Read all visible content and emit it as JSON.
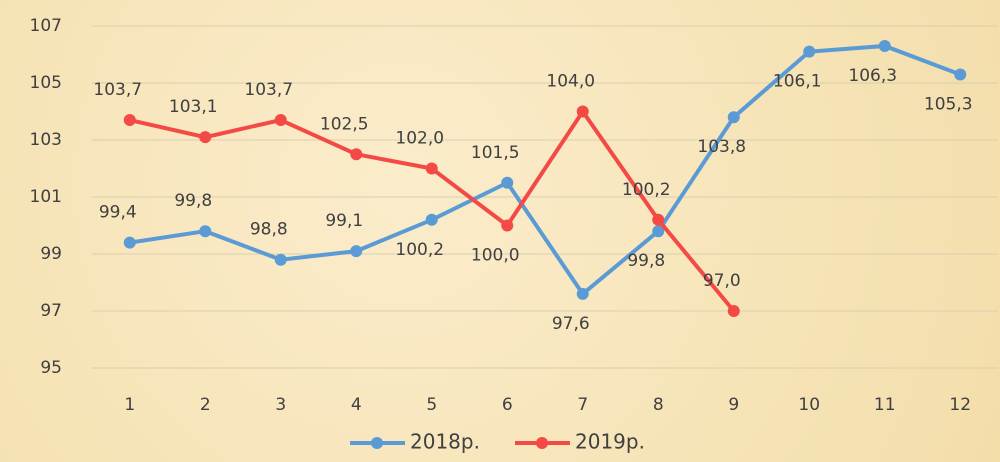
{
  "chart_data": {
    "type": "line",
    "categories": [
      "1",
      "2",
      "3",
      "4",
      "5",
      "6",
      "7",
      "8",
      "9",
      "10",
      "11",
      "12"
    ],
    "series": [
      {
        "name": "2018р.",
        "color": "#5b9bd5",
        "values": [
          99.4,
          99.8,
          98.8,
          99.1,
          100.2,
          101.5,
          97.6,
          99.8,
          103.8,
          106.1,
          106.3,
          105.3
        ],
        "value_labels": [
          "99,4",
          "99,8",
          "98,8",
          "99,1",
          "100,2",
          "101,5",
          "97,6",
          "99,8",
          "103,8",
          "106,1",
          "106,3",
          "105,3"
        ]
      },
      {
        "name": "2019р.",
        "color": "#f44a45",
        "values": [
          103.7,
          103.1,
          103.7,
          102.5,
          102.0,
          100.0,
          104.0,
          100.2,
          97.0,
          null,
          null,
          null
        ],
        "value_labels": [
          "103,7",
          "103,1",
          "103,7",
          "102,5",
          "102,0",
          "100,0",
          "104,0",
          "100,2",
          "97,0",
          null,
          null,
          null
        ]
      }
    ],
    "ylim": [
      95,
      107
    ],
    "yticks": [
      95,
      97,
      99,
      101,
      103,
      105,
      107
    ],
    "grid": true,
    "legend": "bottom"
  }
}
